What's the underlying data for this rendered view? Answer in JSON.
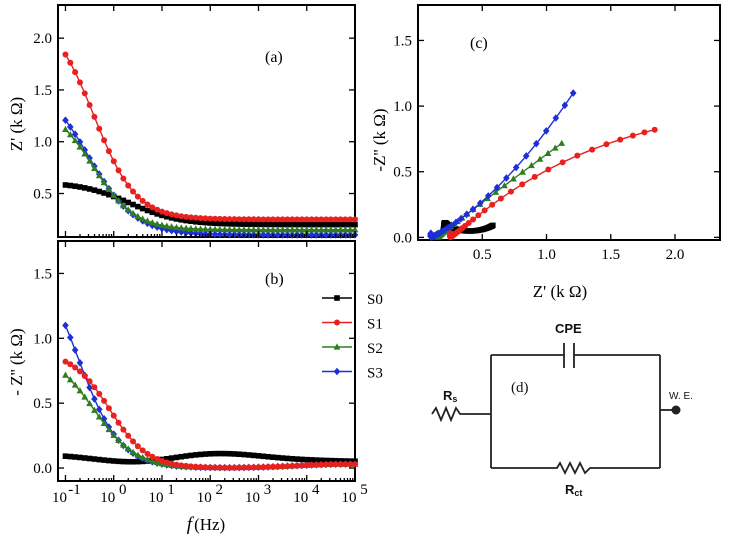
{
  "chart_data": [
    {
      "panel": "(a)",
      "type": "line",
      "ylabel": "Z' (k Ω)",
      "xlabel": "f (Hz)",
      "xscale": "log",
      "xlim": [
        0.07,
        100000
      ],
      "ylim": [
        0.08,
        2.32
      ],
      "yticks": [
        "0.5",
        "1.0",
        "1.5",
        "2.0"
      ],
      "ytick_values": [
        0.5,
        1.0,
        1.5,
        2.0
      ],
      "params": {
        "S0": {
          "hf": 0.2,
          "amp": 0.41,
          "fc": 2.2,
          "n": 0.85
        },
        "S1": {
          "hf": 0.25,
          "amp": 2.0,
          "fc": 0.39,
          "n": 1
        },
        "S2": {
          "hf": 0.15,
          "amp": 1.23,
          "fc": 0.37,
          "n": 1
        },
        "S3": {
          "hf": 0.1,
          "amp": 1.52,
          "fc": 0.3,
          "n": 0.9
        }
      }
    },
    {
      "panel": "(b)",
      "type": "line",
      "ylabel": "- Z'' (k Ω)",
      "xlabel": "f (Hz)",
      "xscale": "log",
      "xlim": [
        0.07,
        100000
      ],
      "ylim": [
        -0.1,
        1.75
      ],
      "yticks": [
        "0.0",
        "0.5",
        "1.0",
        "1.5"
      ],
      "ytick_values": [
        0.0,
        0.5,
        1.0,
        1.5
      ],
      "xticks": [
        "10",
        "10",
        "10",
        "10",
        "10",
        "10",
        "10"
      ],
      "xtick_exponents": [
        "-1",
        "0",
        "1",
        "2",
        "3",
        "4",
        "5"
      ],
      "xtick_values": [
        0.1,
        1,
        10,
        100,
        1000,
        10000,
        100000
      ],
      "params": {
        "S0": {
          "a": 0.1,
          "b": -0.008,
          "dip": 0.045
        },
        "S1": {
          "amp": 0.9,
          "fc": 0.83,
          "n": 1.1
        },
        "S2": {
          "amp": 0.9,
          "fc": 0.39,
          "n": 1.0
        },
        "S3": {
          "amp": 1.71,
          "fc": 0.18,
          "n": 1.0
        }
      }
    },
    {
      "panel": "(c)",
      "type": "line",
      "xlabel": "Z' (k Ω)",
      "ylabel": "-Z'' (k Ω)",
      "xlim": [
        0.0,
        2.35
      ],
      "ylim": [
        -0.02,
        1.77
      ],
      "xticks": [
        "0.5",
        "1.0",
        "1.5",
        "2.0"
      ],
      "xtick_values": [
        0.5,
        1.0,
        1.5,
        2.0
      ],
      "yticks": [
        "0.0",
        "0.5",
        "1.0",
        "1.5"
      ],
      "ytick_values": [
        0.0,
        0.5,
        1.0,
        1.5
      ]
    }
  ],
  "legend": [
    {
      "name": "S0",
      "color": "#000000",
      "marker": "square"
    },
    {
      "name": "S1",
      "color": "#e8201f",
      "marker": "circle"
    },
    {
      "name": "S2",
      "color": "#2e7d1e",
      "marker": "triangle"
    },
    {
      "name": "S3",
      "color": "#1f2fd6",
      "marker": "diamond"
    }
  ],
  "f_unit": "(Hz)",
  "f_symbol": "f",
  "circuit": {
    "label": "(d)",
    "cpe": "CPE",
    "rs_main": "R",
    "rs_sub": "s",
    "rct_main": "R",
    "rct_sub": "ct",
    "we": "W. E."
  }
}
